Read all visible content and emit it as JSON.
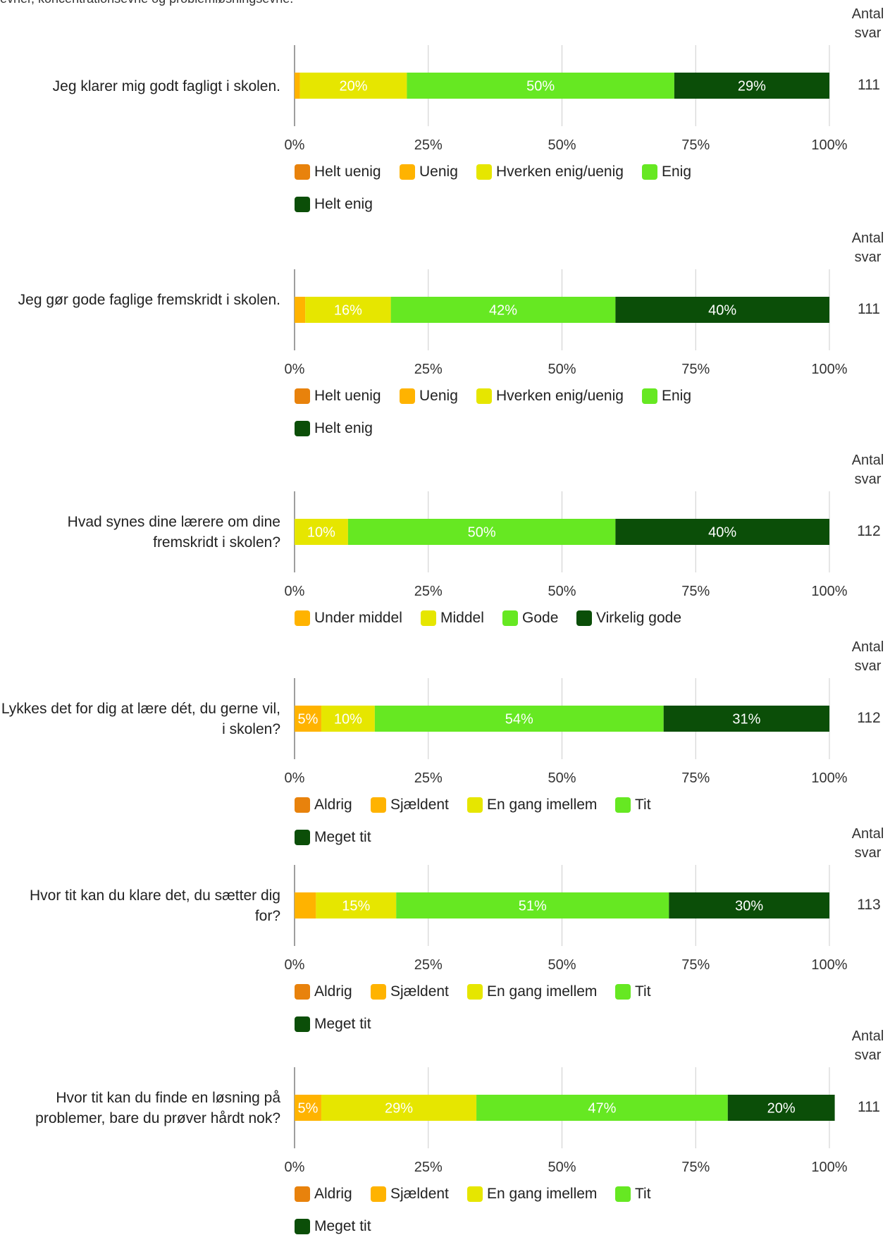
{
  "header": {
    "text": "evner, koncentrationsevne og problemløsningsevne."
  },
  "count_header": "Antal svar",
  "axis_ticks": [
    "0%",
    "25%",
    "50%",
    "75%",
    "100%"
  ],
  "colors": {
    "Helt uenig": "#E8820C",
    "Uenig": "#FFB300",
    "Hverken enig/uenig": "#E6E600",
    "Enig": "#66E822",
    "Helt enig": "#0B4E08",
    "Aldrig": "#E8820C",
    "Sjældent": "#FFB300",
    "En gang imellem": "#E6E600",
    "Tit": "#66E822",
    "Meget tit": "#0B4E08",
    "Under middel": "#FFB300",
    "Middel": "#E6E600",
    "Gode": "#66E822",
    "Virkelig gode": "#0B4E08"
  },
  "chart_data": [
    {
      "type": "bar",
      "orientation": "horizontal-stacked-100",
      "question": "Jeg klarer mig godt fagligt i skolen.",
      "count": "111",
      "xlim": [
        0,
        100
      ],
      "series": [
        {
          "name": "Helt uenig",
          "value": 0,
          "label": ""
        },
        {
          "name": "Uenig",
          "value": 1,
          "label": ""
        },
        {
          "name": "Hverken enig/uenig",
          "value": 20,
          "label": "20%"
        },
        {
          "name": "Enig",
          "value": 50,
          "label": "50%"
        },
        {
          "name": "Helt enig",
          "value": 29,
          "label": "29%"
        }
      ]
    },
    {
      "type": "bar",
      "orientation": "horizontal-stacked-100",
      "question": "Jeg gør gode faglige fremskridt i skolen.",
      "count": "111",
      "xlim": [
        0,
        100
      ],
      "series": [
        {
          "name": "Helt uenig",
          "value": 0,
          "label": ""
        },
        {
          "name": "Uenig",
          "value": 2,
          "label": ""
        },
        {
          "name": "Hverken enig/uenig",
          "value": 16,
          "label": "16%"
        },
        {
          "name": "Enig",
          "value": 42,
          "label": "42%"
        },
        {
          "name": "Helt enig",
          "value": 40,
          "label": "40%"
        }
      ]
    },
    {
      "type": "bar",
      "orientation": "horizontal-stacked-100",
      "question": "Hvad synes dine lærere om dine fremskridt i skolen?",
      "count": "112",
      "xlim": [
        0,
        100
      ],
      "series": [
        {
          "name": "Under middel",
          "value": 0,
          "label": ""
        },
        {
          "name": "Middel",
          "value": 10,
          "label": "10%"
        },
        {
          "name": "Gode",
          "value": 50,
          "label": "50%"
        },
        {
          "name": "Virkelig gode",
          "value": 40,
          "label": "40%"
        }
      ]
    },
    {
      "type": "bar",
      "orientation": "horizontal-stacked-100",
      "question": "Lykkes det for dig at lære dét, du gerne vil, i skolen?",
      "count": "112",
      "xlim": [
        0,
        100
      ],
      "series": [
        {
          "name": "Aldrig",
          "value": 0,
          "label": ""
        },
        {
          "name": "Sjældent",
          "value": 5,
          "label": "5%"
        },
        {
          "name": "En gang imellem",
          "value": 10,
          "label": "10%"
        },
        {
          "name": "Tit",
          "value": 54,
          "label": "54%"
        },
        {
          "name": "Meget tit",
          "value": 31,
          "label": "31%"
        }
      ]
    },
    {
      "type": "bar",
      "orientation": "horizontal-stacked-100",
      "question": "Hvor tit kan du klare det, du sætter dig for?",
      "count": "113",
      "xlim": [
        0,
        100
      ],
      "series": [
        {
          "name": "Aldrig",
          "value": 0,
          "label": ""
        },
        {
          "name": "Sjældent",
          "value": 4,
          "label": ""
        },
        {
          "name": "En gang imellem",
          "value": 15,
          "label": "15%"
        },
        {
          "name": "Tit",
          "value": 51,
          "label": "51%"
        },
        {
          "name": "Meget tit",
          "value": 30,
          "label": "30%"
        }
      ]
    },
    {
      "type": "bar",
      "orientation": "horizontal-stacked-100",
      "question": "Hvor tit kan du finde en løsning på problemer, bare du prøver hårdt nok?",
      "count": "111",
      "xlim": [
        0,
        100
      ],
      "series": [
        {
          "name": "Aldrig",
          "value": 0,
          "label": ""
        },
        {
          "name": "Sjældent",
          "value": 5,
          "label": "5%"
        },
        {
          "name": "En gang imellem",
          "value": 29,
          "label": "29%"
        },
        {
          "name": "Tit",
          "value": 47,
          "label": "47%"
        },
        {
          "name": "Meget tit",
          "value": 20,
          "label": "20%"
        }
      ]
    }
  ]
}
